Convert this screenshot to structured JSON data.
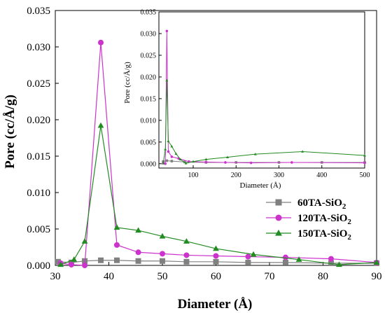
{
  "chart_data": [
    {
      "type": "line",
      "xlabel": "Diameter (Å)",
      "ylabel": "Pore (cc/Å/g)",
      "xlim": [
        30,
        90
      ],
      "ylim": [
        0,
        0.035
      ],
      "xticks": [
        "30",
        "40",
        "50",
        "60",
        "70",
        "80",
        "90"
      ],
      "yticks": [
        "0.000",
        "0.005",
        "0.010",
        "0.015",
        "0.020",
        "0.025",
        "0.030",
        "0.035"
      ],
      "legend": "bottom-right",
      "series": [
        {
          "name": "60TA-SiO",
          "name_sub": "2",
          "color": "#808080",
          "marker": "square",
          "points": [
            [
              30.5,
              0.0005
            ],
            [
              33.0,
              0.0004
            ],
            [
              35.5,
              0.0006
            ],
            [
              38.5,
              0.0007
            ],
            [
              41.5,
              0.0007
            ],
            [
              45.5,
              0.0006
            ],
            [
              50.0,
              0.0006
            ],
            [
              54.5,
              0.0005
            ],
            [
              60.0,
              0.0005
            ],
            [
              66.0,
              0.0004
            ],
            [
              73.0,
              0.0004
            ],
            [
              81.5,
              0.0003
            ],
            [
              90.0,
              0.0003
            ]
          ]
        },
        {
          "name": "120TA-SiO",
          "name_sub": "2",
          "color": "#cc33cc",
          "marker": "circle",
          "points": [
            [
              31.0,
              0.0003
            ],
            [
              33.0,
              0.0001
            ],
            [
              35.5,
              0.0
            ],
            [
              38.5,
              0.0306
            ],
            [
              41.5,
              0.0028
            ],
            [
              45.5,
              0.0018
            ],
            [
              50.0,
              0.0016
            ],
            [
              54.5,
              0.0014
            ],
            [
              60.0,
              0.0013
            ],
            [
              66.0,
              0.0012
            ],
            [
              73.0,
              0.0011
            ],
            [
              81.5,
              0.0009
            ],
            [
              90.0,
              0.0004
            ]
          ]
        },
        {
          "name": "150TA-SiO",
          "name_sub": "2",
          "color": "#228b22",
          "marker": "triangle",
          "points": [
            [
              31.0,
              0.0001
            ],
            [
              33.5,
              0.0008
            ],
            [
              35.5,
              0.0033
            ],
            [
              38.5,
              0.0192
            ],
            [
              41.5,
              0.0052
            ],
            [
              45.5,
              0.0048
            ],
            [
              50.0,
              0.004
            ],
            [
              54.5,
              0.0033
            ],
            [
              60.0,
              0.0023
            ],
            [
              67.0,
              0.0015
            ],
            [
              75.5,
              0.0008
            ],
            [
              83.0,
              0.0001
            ],
            [
              90.0,
              0.0004
            ]
          ]
        }
      ]
    },
    {
      "type": "line",
      "xlabel": "Diameter (Å)",
      "ylabel": "Pore (cc/Å/g)",
      "xlim": [
        20,
        500
      ],
      "ylim": [
        -0.001,
        0.035
      ],
      "xticks": [
        "100",
        "200",
        "300",
        "400",
        "500"
      ],
      "yticks": [
        "0.000",
        "0.005",
        "0.010",
        "0.015",
        "0.020",
        "0.025",
        "0.030",
        "0.035"
      ],
      "series": [
        {
          "color": "#808080",
          "points": [
            [
              30,
              0.0005
            ],
            [
              38.5,
              0.0007
            ],
            [
              50,
              0.0006
            ],
            [
              80,
              0.0004
            ],
            [
              130,
              0.0003
            ],
            [
              200,
              0.0003
            ],
            [
              300,
              0.0003
            ],
            [
              400,
              0.0003
            ],
            [
              500,
              0.0003
            ]
          ]
        },
        {
          "color": "#cc33cc",
          "points": [
            [
              30,
              0.0001
            ],
            [
              35,
              0.0
            ],
            [
              38.5,
              0.0306
            ],
            [
              42,
              0.0028
            ],
            [
              50,
              0.0016
            ],
            [
              66,
              0.0012
            ],
            [
              90,
              0.0005
            ],
            [
              130,
              0.0004
            ],
            [
              175,
              0.0003
            ],
            [
              235,
              0.0002
            ],
            [
              330,
              0.0003
            ],
            [
              500,
              0.0002
            ]
          ]
        },
        {
          "color": "#228b22",
          "points": [
            [
              30,
              0.0001
            ],
            [
              35,
              0.0033
            ],
            [
              38.5,
              0.0192
            ],
            [
              42,
              0.0052
            ],
            [
              50,
              0.004
            ],
            [
              60,
              0.0023
            ],
            [
              70,
              0.001
            ],
            [
              83,
              0.0001
            ],
            [
              100,
              0.0005
            ],
            [
              130,
              0.001
            ],
            [
              180,
              0.0015
            ],
            [
              245,
              0.0022
            ],
            [
              355,
              0.0028
            ],
            [
              500,
              0.0019
            ]
          ]
        }
      ]
    }
  ]
}
